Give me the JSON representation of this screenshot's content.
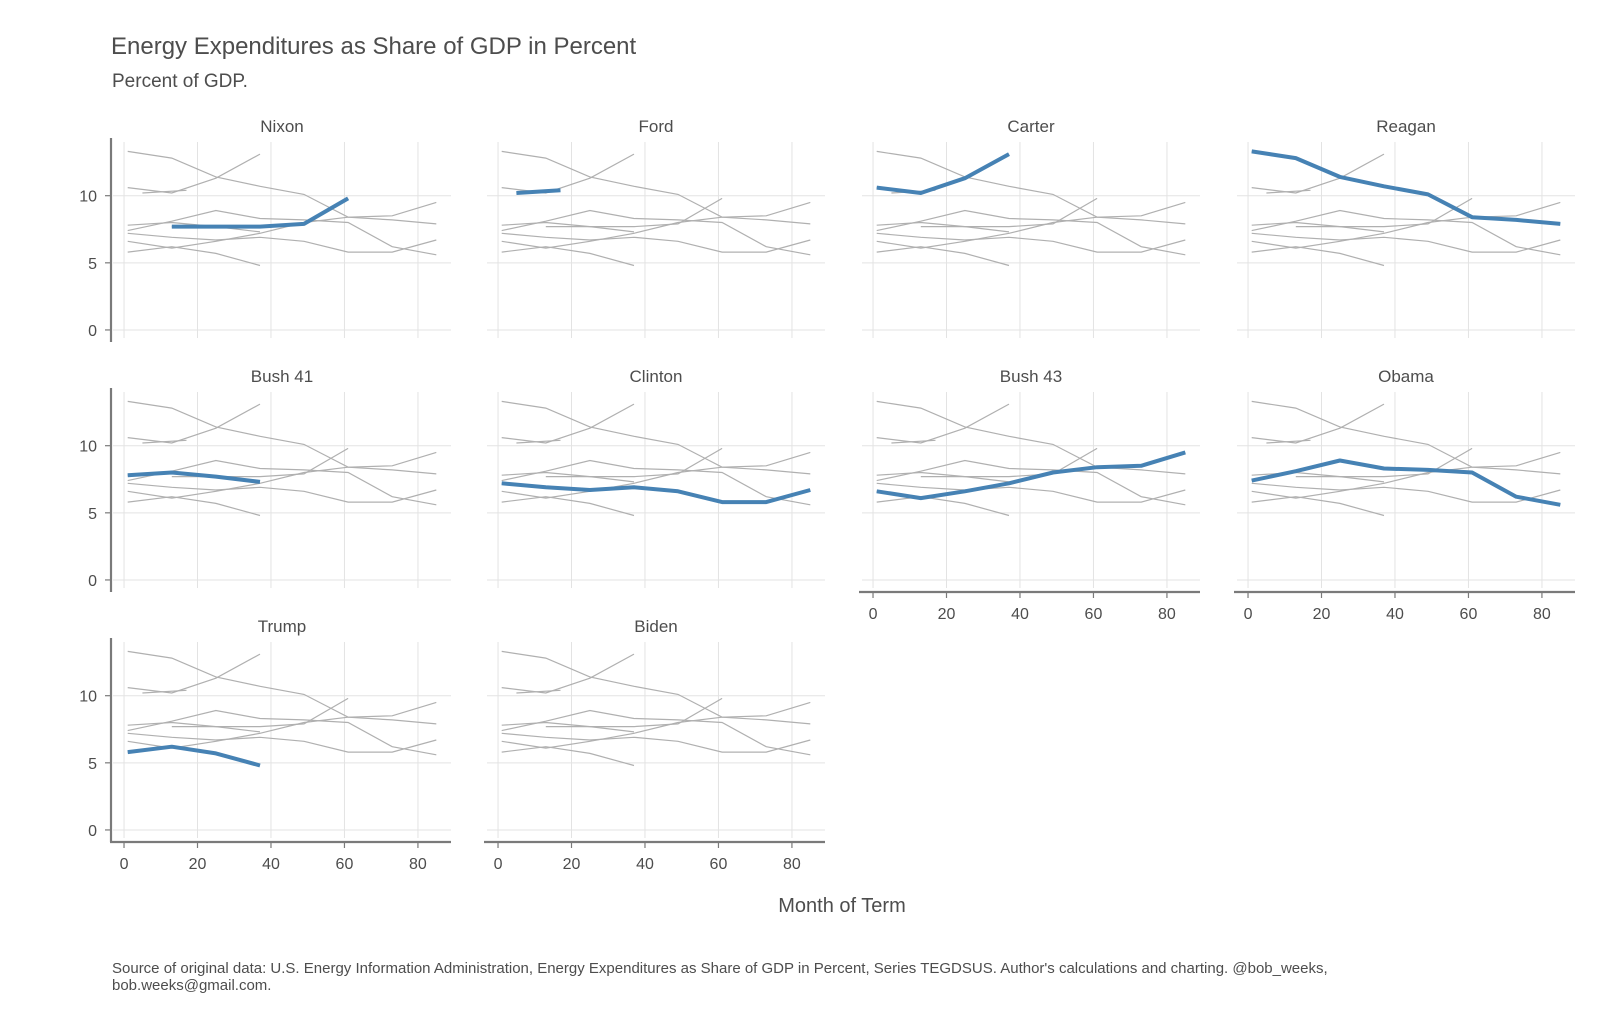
{
  "chart_data": {
    "type": "line",
    "title": "Energy Expenditures as Share of GDP in Percent",
    "subtitle": "Percent of GDP.",
    "xlabel": "Month of Term",
    "ylabel": "",
    "caption_lines": [
      "Source of original data: U.S. Energy Information Administration, Energy Expenditures as Share of GDP in Percent, Series TEGDSUS. Author's calculations and charting. @bob_weeks,",
      "bob.weeks@gmail.com."
    ],
    "xlim": [
      -3,
      89
    ],
    "ylim": [
      -0.6,
      14
    ],
    "x_ticks": [
      0,
      20,
      40,
      60,
      80
    ],
    "y_ticks": [
      0,
      5,
      10
    ],
    "grid": true,
    "highlight_color": "#4682b4",
    "background_color": "#b0b0b0",
    "facet_order": [
      "Nixon",
      "Ford",
      "Carter",
      "Reagan",
      "Bush 41",
      "Clinton",
      "Bush 43",
      "Obama",
      "Trump",
      "Biden"
    ],
    "series": [
      {
        "name": "Nixon",
        "x": [
          13,
          25,
          37,
          49,
          61
        ],
        "y": [
          7.7,
          7.7,
          7.7,
          7.9,
          9.8
        ]
      },
      {
        "name": "Ford",
        "x": [
          5,
          17
        ],
        "y": [
          10.2,
          10.4
        ]
      },
      {
        "name": "Carter",
        "x": [
          1,
          13,
          25,
          37
        ],
        "y": [
          10.6,
          10.2,
          11.3,
          13.1
        ]
      },
      {
        "name": "Reagan",
        "x": [
          1,
          13,
          25,
          37,
          49,
          61,
          73,
          85
        ],
        "y": [
          13.3,
          12.8,
          11.4,
          10.7,
          10.1,
          8.4,
          8.2,
          7.9
        ]
      },
      {
        "name": "Bush 41",
        "x": [
          1,
          13,
          25,
          37
        ],
        "y": [
          7.8,
          8.0,
          7.7,
          7.3
        ]
      },
      {
        "name": "Clinton",
        "x": [
          1,
          13,
          25,
          37,
          49,
          61,
          73,
          85
        ],
        "y": [
          7.2,
          6.9,
          6.7,
          6.9,
          6.6,
          5.8,
          5.8,
          6.7
        ]
      },
      {
        "name": "Bush 43",
        "x": [
          1,
          13,
          25,
          37,
          49,
          61,
          73,
          85
        ],
        "y": [
          6.6,
          6.1,
          6.6,
          7.2,
          8.0,
          8.4,
          8.5,
          9.5
        ]
      },
      {
        "name": "Obama",
        "x": [
          1,
          13,
          25,
          37,
          49,
          61,
          73,
          85
        ],
        "y": [
          7.4,
          8.1,
          8.9,
          8.3,
          8.2,
          8.0,
          6.2,
          5.6
        ]
      },
      {
        "name": "Trump",
        "x": [
          1,
          13,
          25,
          37
        ],
        "y": [
          5.8,
          6.2,
          5.7,
          4.8
        ]
      },
      {
        "name": "Biden",
        "x": [],
        "y": []
      }
    ]
  }
}
